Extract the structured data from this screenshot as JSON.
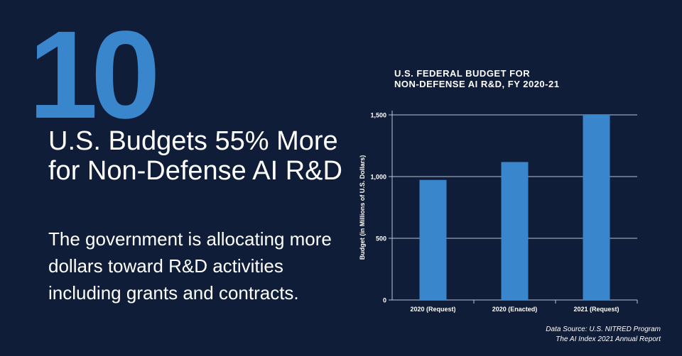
{
  "hero": {
    "number": "10",
    "headline": "U.S. Budgets 55% More for Non-Defense AI R&D",
    "subtext": "The government is allocating more dollars toward R&D activities including grants and contracts."
  },
  "colors": {
    "background": "#0f1d38",
    "accent": "#3a86cc",
    "bar": "#3a86cc",
    "text": "#ffffff"
  },
  "chart_data": {
    "type": "bar",
    "title_lines": [
      "U.S. FEDERAL BUDGET FOR",
      "NON-DEFENSE AI R&D, FY 2020-21"
    ],
    "categories": [
      "2020 (Request)",
      "2020 (Enacted)",
      "2021 (Request)"
    ],
    "values": [
      973,
      1118,
      1500
    ],
    "ylabel": "Budget (in Millions of U.S. Dollars)",
    "xlabel": "",
    "ylim": [
      0,
      1500
    ],
    "yticks": [
      0,
      500,
      1000,
      1500
    ],
    "ytick_labels": [
      "0",
      "500",
      "1,000",
      "1,500"
    ],
    "grid": true,
    "legend": "none"
  },
  "source": {
    "line1": "Data Source: U.S. NITRED Program",
    "line2": "The AI Index 2021 Annual Report"
  }
}
